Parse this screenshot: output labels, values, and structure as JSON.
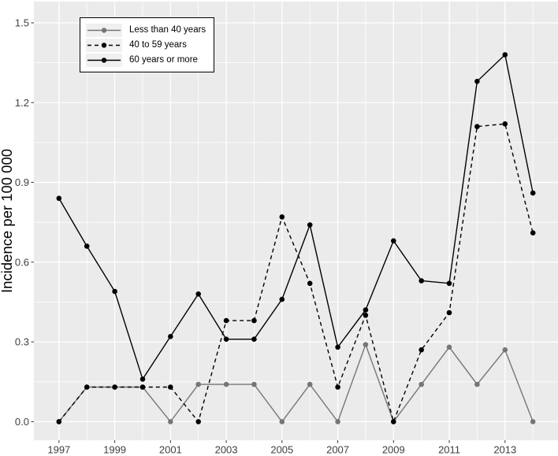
{
  "figure": {
    "background": "#ffffff",
    "panel_background": "#ebebeb",
    "grid_color": "#ffffff",
    "tick_color": "#333333",
    "tick_label_color": "#404040",
    "axis_title_color": "#000000",
    "legend_border_color": "#000000",
    "legend_key_fill": "#f0f0f0"
  },
  "chart_data": {
    "type": "line",
    "title": "",
    "xlabel": "",
    "ylabel": "Incidence per 100 000",
    "x": [
      1997,
      1998,
      1999,
      2000,
      2001,
      2002,
      2003,
      2004,
      2005,
      2006,
      2007,
      2008,
      2009,
      2010,
      2011,
      2012,
      2013,
      2014
    ],
    "series": [
      {
        "name": "Less than 40 years",
        "color": "#767676",
        "dash": "solid",
        "marker": "circle",
        "values": [
          0.0,
          0.13,
          0.13,
          0.13,
          0.0,
          0.14,
          0.14,
          0.14,
          0.0,
          0.14,
          0.0,
          0.29,
          0.0,
          0.14,
          0.28,
          0.14,
          0.27,
          0.0
        ]
      },
      {
        "name": "40 to 59 years",
        "color": "#000000",
        "dash": "dashed",
        "marker": "circle",
        "values": [
          0.0,
          0.13,
          0.13,
          0.13,
          0.13,
          0.0,
          0.38,
          0.38,
          0.77,
          0.52,
          0.13,
          0.4,
          0.0,
          0.27,
          0.41,
          1.11,
          1.12,
          0.71
        ]
      },
      {
        "name": "60 years or more",
        "color": "#000000",
        "dash": "solid",
        "marker": "circle",
        "values": [
          0.84,
          0.66,
          0.49,
          0.16,
          0.32,
          0.48,
          0.31,
          0.31,
          0.46,
          0.74,
          0.28,
          0.42,
          0.68,
          0.53,
          0.52,
          1.28,
          1.38,
          0.86
        ]
      }
    ],
    "x_tick_years": [
      1997,
      1999,
      2001,
      2003,
      2005,
      2007,
      2009,
      2011,
      2013
    ],
    "x_tick_labels": [
      "1997",
      "1999",
      "2001",
      "2003",
      "2005",
      "2007",
      "2009",
      "2011",
      "2013"
    ],
    "y_ticks": [
      0.0,
      0.3,
      0.6,
      0.9,
      1.2,
      1.5
    ],
    "y_tick_labels": [
      "0.0",
      "0.3",
      "0.6",
      "0.9",
      "1.2",
      "1.5"
    ],
    "y_minor_ticks": [
      0.15,
      0.45,
      0.75,
      1.05,
      1.35
    ],
    "ylim": [
      -0.07,
      1.58
    ],
    "xlim": [
      1996.1,
      2014.9
    ],
    "grid": true,
    "legend_position": "top-left"
  }
}
